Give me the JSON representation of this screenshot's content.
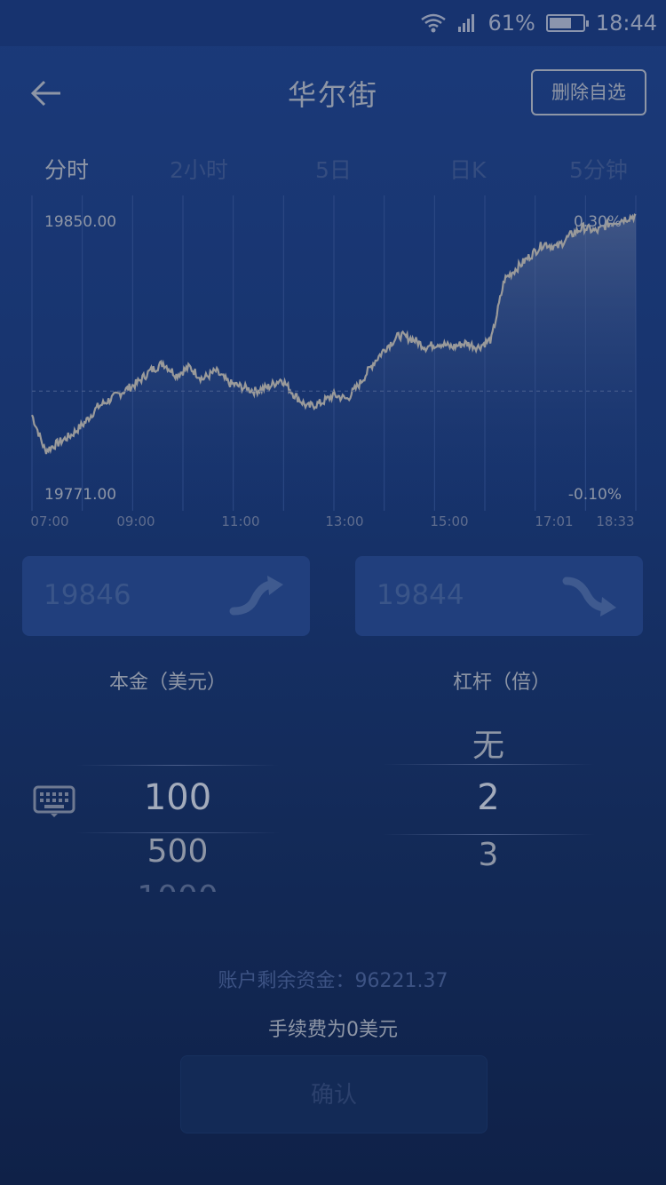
{
  "status_bar": {
    "battery": "61%",
    "time": "18:44"
  },
  "header": {
    "title": "华尔街",
    "action_label": "删除自选"
  },
  "tabs": [
    {
      "label": "分时",
      "active": true
    },
    {
      "label": "2小时",
      "active": false
    },
    {
      "label": "5日",
      "active": false
    },
    {
      "label": "日K",
      "active": false
    },
    {
      "label": "5分钟",
      "active": false
    }
  ],
  "chart_data": {
    "type": "area",
    "y_top_label": "19850.00",
    "y_bottom_label": "19771.00",
    "pct_top_label": "0.30%",
    "pct_bottom_label": "-0.10%",
    "ylim": [
      19771.0,
      19850.0
    ],
    "x_ticks": [
      "07:00",
      "09:00",
      "11:00",
      "13:00",
      "15:00",
      "17:01",
      "18:33"
    ],
    "series": [
      {
        "name": "price",
        "x": [
          "07:00",
          "07:15",
          "07:30",
          "07:45",
          "08:00",
          "08:15",
          "08:30",
          "08:45",
          "09:00",
          "09:15",
          "09:30",
          "09:45",
          "10:00",
          "10:15",
          "10:30",
          "10:45",
          "11:00",
          "11:15",
          "11:30",
          "11:45",
          "12:00",
          "12:15",
          "12:30",
          "12:45",
          "13:00",
          "13:15",
          "13:30",
          "13:45",
          "14:00",
          "14:15",
          "14:30",
          "14:45",
          "15:00",
          "15:15",
          "15:30",
          "15:45",
          "16:00",
          "16:15",
          "16:30",
          "16:45",
          "17:01",
          "17:15",
          "17:30",
          "17:45",
          "18:00",
          "18:15",
          "18:33"
        ],
        "values": [
          19795,
          19786,
          19788,
          19790,
          19793,
          19797,
          19799,
          19801,
          19803,
          19806,
          19808,
          19805,
          19807,
          19804,
          19806,
          19803,
          19802,
          19801,
          19802,
          19804,
          19800,
          19797,
          19798,
          19800,
          19799,
          19803,
          19808,
          19812,
          19815,
          19814,
          19812,
          19813,
          19812,
          19813,
          19812,
          19814,
          19829,
          19832,
          19835,
          19838,
          19837,
          19840,
          19842,
          19841,
          19843,
          19844,
          19845
        ]
      }
    ],
    "baseline": 19801
  },
  "trade": {
    "buy_price": "19846",
    "sell_price": "19844"
  },
  "picker": {
    "principal_label": "本金（美元）",
    "leverage_label": "杠杆（倍）",
    "principal_options": [
      "100",
      "500",
      "1000"
    ],
    "leverage_options": [
      "无",
      "2",
      "3"
    ]
  },
  "footer": {
    "balance_text": "账户剩余资金：96221.37",
    "fee_text": "手续费为0美元",
    "confirm_label": "确认"
  },
  "colors": {
    "background": "#17336c",
    "line": "#9a9a9a",
    "grid": "#2f4a82"
  }
}
